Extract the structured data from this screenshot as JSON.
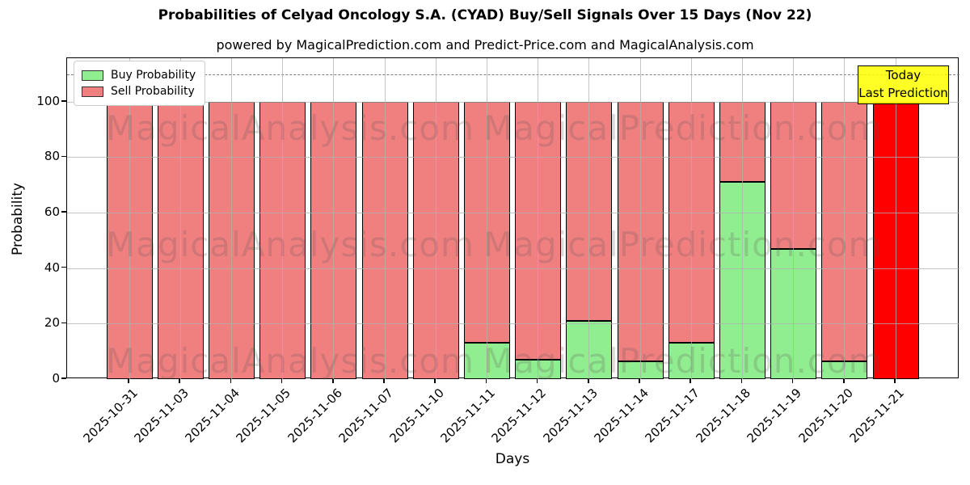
{
  "figure": {
    "title": "Probabilities of Celyad Oncology S.A. (CYAD) Buy/Sell Signals Over 15 Days (Nov 22)",
    "subtitle": "powered by MagicalPrediction.com and Predict-Price.com and MagicalAnalysis.com"
  },
  "watermarks": {
    "left_text": "MagicalAnalysis.com",
    "right_text": "MagicalPrediction.com"
  },
  "annotation_box": {
    "line1": "Today",
    "line2": "Last Prediction",
    "bg_color": "#ffff00",
    "border_color": "#000000"
  },
  "legend": {
    "items": [
      {
        "label": "Buy Probability",
        "color": "#90ee90"
      },
      {
        "label": "Sell Probability",
        "color": "#f08080"
      }
    ]
  },
  "chart_data": {
    "type": "bar",
    "stacked": true,
    "title": "Probabilities of Celyad Oncology S.A. (CYAD) Buy/Sell Signals Over 15 Days (Nov 22)",
    "xlabel": "Days",
    "ylabel": "Probability",
    "categories": [
      "2025-10-31",
      "2025-11-03",
      "2025-11-04",
      "2025-11-05",
      "2025-11-06",
      "2025-11-07",
      "2025-11-10",
      "2025-11-11",
      "2025-11-12",
      "2025-11-13",
      "2025-11-14",
      "2025-11-17",
      "2025-11-18",
      "2025-11-19",
      "2025-11-20",
      "2025-11-21"
    ],
    "series": [
      {
        "name": "Buy Probability",
        "color": "#90ee90",
        "values": [
          0,
          0,
          0,
          0,
          0,
          0,
          0,
          13,
          7,
          21,
          6.5,
          13,
          71,
          47,
          6.5,
          0
        ]
      },
      {
        "name": "Sell Probability",
        "color": "#f08080",
        "values": [
          100,
          100,
          100,
          100,
          100,
          100,
          100,
          87,
          93,
          79,
          93.5,
          87,
          29,
          53,
          93.5,
          100
        ]
      }
    ],
    "highlight_last_bar": {
      "index": 15,
      "color": "#ff0000",
      "note": "Today / Last Prediction bar drawn in solid red"
    },
    "yticks": [
      0,
      20,
      40,
      60,
      80,
      100
    ],
    "ylim": [
      0,
      115.7
    ],
    "dashed_line_y": 110,
    "grid": true,
    "bar_edge_color": "#000000",
    "legend_position": "upper left"
  }
}
